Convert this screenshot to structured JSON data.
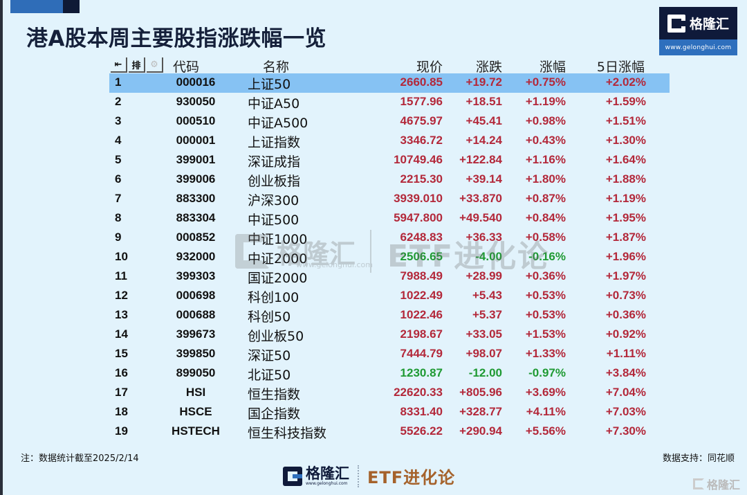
{
  "header": {
    "title": "港A股本周主要股指涨跌幅一览",
    "brand_name": "格隆汇",
    "brand_url": "www.gelonghui.com"
  },
  "table": {
    "toolbar_icons": [
      "back-to-first-icon",
      "sort-icon",
      "settings-gear-icon"
    ],
    "toolbar_glyphs": [
      "⇤",
      "排",
      "⚙"
    ],
    "columns": {
      "code": "代码",
      "name": "名称",
      "price": "现价",
      "change": "涨跌",
      "pct": "涨幅",
      "pct5": "5日涨幅"
    },
    "selected_row": 1,
    "rows": [
      {
        "idx": "1",
        "code": "000016",
        "name": "上证50",
        "price": "2660.85",
        "change": "+19.72",
        "pct": "+0.75%",
        "pct5": "+2.02%",
        "dir": "up"
      },
      {
        "idx": "2",
        "code": "930050",
        "name": "中证A50",
        "price": "1577.96",
        "change": "+18.51",
        "pct": "+1.19%",
        "pct5": "+1.59%",
        "dir": "up"
      },
      {
        "idx": "3",
        "code": "000510",
        "name": "中证A500",
        "price": "4675.97",
        "change": "+45.41",
        "pct": "+0.98%",
        "pct5": "+1.51%",
        "dir": "up"
      },
      {
        "idx": "4",
        "code": "000001",
        "name": "上证指数",
        "price": "3346.72",
        "change": "+14.24",
        "pct": "+0.43%",
        "pct5": "+1.30%",
        "dir": "up"
      },
      {
        "idx": "5",
        "code": "399001",
        "name": "深证成指",
        "price": "10749.46",
        "change": "+122.84",
        "pct": "+1.16%",
        "pct5": "+1.64%",
        "dir": "up"
      },
      {
        "idx": "6",
        "code": "399006",
        "name": "创业板指",
        "price": "2215.30",
        "change": "+39.14",
        "pct": "+1.80%",
        "pct5": "+1.88%",
        "dir": "up"
      },
      {
        "idx": "7",
        "code": "883300",
        "name": "沪深300",
        "price": "3939.010",
        "change": "+33.870",
        "pct": "+0.87%",
        "pct5": "+1.19%",
        "dir": "up"
      },
      {
        "idx": "8",
        "code": "883304",
        "name": "中证500",
        "price": "5947.800",
        "change": "+49.540",
        "pct": "+0.84%",
        "pct5": "+1.95%",
        "dir": "up"
      },
      {
        "idx": "9",
        "code": "000852",
        "name": "中证1000",
        "price": "6248.83",
        "change": "+36.33",
        "pct": "+0.58%",
        "pct5": "+1.87%",
        "dir": "up"
      },
      {
        "idx": "10",
        "code": "932000",
        "name": "中证2000",
        "price": "2506.65",
        "change": "-4.00",
        "pct": "-0.16%",
        "pct5": "+1.96%",
        "dir": "down"
      },
      {
        "idx": "11",
        "code": "399303",
        "name": "国证2000",
        "price": "7988.49",
        "change": "+28.99",
        "pct": "+0.36%",
        "pct5": "+1.97%",
        "dir": "up"
      },
      {
        "idx": "12",
        "code": "000698",
        "name": "科创100",
        "price": "1022.49",
        "change": "+5.43",
        "pct": "+0.53%",
        "pct5": "+0.73%",
        "dir": "up"
      },
      {
        "idx": "13",
        "code": "000688",
        "name": "科创50",
        "price": "1022.46",
        "change": "+5.37",
        "pct": "+0.53%",
        "pct5": "+0.36%",
        "dir": "up"
      },
      {
        "idx": "14",
        "code": "399673",
        "name": "创业板50",
        "price": "2198.67",
        "change": "+33.05",
        "pct": "+1.53%",
        "pct5": "+0.92%",
        "dir": "up"
      },
      {
        "idx": "15",
        "code": "399850",
        "name": "深证50",
        "price": "7444.79",
        "change": "+98.07",
        "pct": "+1.33%",
        "pct5": "+1.11%",
        "dir": "up"
      },
      {
        "idx": "16",
        "code": "899050",
        "name": "北证50",
        "price": "1230.87",
        "change": "-12.00",
        "pct": "-0.97%",
        "pct5": "+3.84%",
        "dir": "down"
      },
      {
        "idx": "17",
        "code": "HSI",
        "name": "恒生指数",
        "price": "22620.33",
        "change": "+805.96",
        "pct": "+3.69%",
        "pct5": "+7.04%",
        "dir": "up"
      },
      {
        "idx": "18",
        "code": "HSCE",
        "name": "国企指数",
        "price": "8331.40",
        "change": "+328.77",
        "pct": "+4.11%",
        "pct5": "+7.03%",
        "dir": "up"
      },
      {
        "idx": "19",
        "code": "HSTECH",
        "name": "恒生科技指数",
        "price": "5526.22",
        "change": "+290.94",
        "pct": "+5.56%",
        "pct5": "+7.30%",
        "dir": "up"
      }
    ]
  },
  "watermark": {
    "brand": "格隆汇",
    "url": "www.gelonghui.com",
    "etf": "ETF进化论"
  },
  "footer": {
    "note": "注：数据统计截至2025/2/14",
    "source": "数据支持：同花顺",
    "logo_name": "格隆汇",
    "logo_url": "www.gelonghui.com",
    "etf_label": "ETF进化论",
    "corner_watermark": "格隆汇"
  },
  "colors": {
    "up": "#b3283a",
    "down": "#1f9a33",
    "selected_row": "#86c2f3",
    "background": "#e2f3fc",
    "brand_dark": "#0f1a3a",
    "brand_blue": "#2e6fbd",
    "etf_brown": "#a5622b"
  }
}
